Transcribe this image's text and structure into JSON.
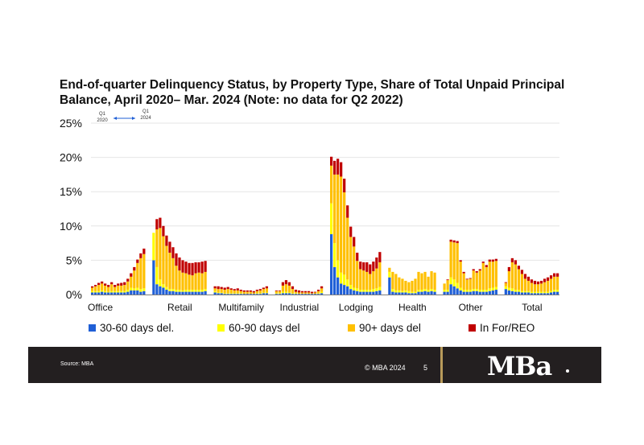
{
  "title": "End-of-quarter Delinquency Status, by Property Type, Share of Total Unpaid Principal Balance, April 2020– Mar. 2024 (Note: no data for Q2 2022)",
  "annotation": {
    "start_quarter": "Q1",
    "start_year": "2020",
    "end_quarter": "Q1",
    "end_year": "2024"
  },
  "footer": {
    "source": "Source: MBA",
    "copyright": "© MBA 2024",
    "page": "5",
    "logo": "MBa"
  },
  "colors": {
    "s30_60": "#1f5fd6",
    "s60_90": "#ffff00",
    "s90plus": "#ffc000",
    "reo": "#c00000",
    "grid": "#e6e6e6",
    "axis": "#7f7f7f"
  },
  "chart_data": {
    "type": "bar",
    "stacked": true,
    "ylim": [
      0,
      25
    ],
    "yticks": [
      "0%",
      "5%",
      "10%",
      "15%",
      "20%",
      "25%"
    ],
    "ytick_values": [
      0,
      5,
      10,
      15,
      20,
      25
    ],
    "categories": [
      "Office",
      "Retail",
      "Multifamily",
      "Industrial",
      "Lodging",
      "Health",
      "Other",
      "Total"
    ],
    "series": [
      {
        "name": "30-60 days del.",
        "key": "s30_60"
      },
      {
        "name": "60-90 days del",
        "key": "s60_90"
      },
      {
        "name": "90+ days del",
        "key": "s90plus"
      },
      {
        "name": "In For/REO",
        "key": "reo"
      }
    ],
    "groups": [
      {
        "name": "Office",
        "bars": [
          [
            0.3,
            0.2,
            0.5,
            0.2
          ],
          [
            0.3,
            0.2,
            0.7,
            0.2
          ],
          [
            0.3,
            0.2,
            0.9,
            0.3
          ],
          [
            0.4,
            0.2,
            1.0,
            0.3
          ],
          [
            0.3,
            0.2,
            0.8,
            0.3
          ],
          [
            0.3,
            0.1,
            0.7,
            0.3
          ],
          [
            0.3,
            0.2,
            1.0,
            0.3
          ],
          [
            0.3,
            0.2,
            0.6,
            0.3
          ],
          [
            0.3,
            0.2,
            0.8,
            0.3
          ],
          [
            0.3,
            0.2,
            0.8,
            0.4
          ],
          [
            0.3,
            0.2,
            0.9,
            0.4
          ],
          [
            0.4,
            0.3,
            1.2,
            0.4
          ],
          [
            0.6,
            0.4,
            1.6,
            0.5
          ],
          [
            0.6,
            0.3,
            2.6,
            0.5
          ],
          [
            0.6,
            0.4,
            3.6,
            0.5
          ],
          [
            0.4,
            0.4,
            4.5,
            0.7
          ],
          [
            0.5,
            0.4,
            5.0,
            0.8
          ]
        ]
      },
      {
        "name": "Retail",
        "bars": [
          [
            5.0,
            4.0,
            0,
            0
          ],
          [
            1.5,
            2.5,
            5.5,
            1.5
          ],
          [
            1.2,
            1.0,
            7.5,
            1.5
          ],
          [
            1.0,
            0.5,
            7.0,
            1.5
          ],
          [
            0.7,
            0.4,
            6.0,
            1.5
          ],
          [
            0.5,
            0.3,
            5.3,
            1.6
          ],
          [
            0.5,
            0.3,
            4.5,
            1.6
          ],
          [
            0.4,
            0.3,
            3.5,
            1.8
          ],
          [
            0.4,
            0.3,
            2.8,
            1.9
          ],
          [
            0.4,
            0.2,
            2.6,
            1.8
          ],
          [
            0.4,
            0.3,
            2.4,
            1.7
          ],
          [
            0.4,
            0.3,
            2.2,
            1.7
          ],
          [
            0.4,
            0.3,
            2.1,
            1.8
          ],
          [
            0.4,
            0.3,
            2.4,
            1.6
          ],
          [
            0.4,
            0.3,
            2.5,
            1.5
          ],
          [
            0.4,
            0.3,
            2.4,
            1.7
          ],
          [
            0.5,
            0.3,
            2.5,
            1.6
          ]
        ]
      },
      {
        "name": "Multifamily",
        "bars": [
          [
            0.3,
            0.2,
            0.4,
            0.3
          ],
          [
            0.2,
            0.1,
            0.5,
            0.4
          ],
          [
            0.2,
            0.1,
            0.5,
            0.3
          ],
          [
            0.1,
            0.1,
            0.5,
            0.3
          ],
          [
            0.1,
            0.1,
            0.6,
            0.3
          ],
          [
            0.1,
            0.1,
            0.5,
            0.2
          ],
          [
            0.1,
            0.1,
            0.4,
            0.2
          ],
          [
            0.1,
            0.1,
            0.4,
            0.3
          ],
          [
            0.1,
            0.1,
            0.3,
            0.2
          ],
          [
            0.1,
            0.0,
            0.3,
            0.2
          ],
          [
            0.1,
            0.0,
            0.3,
            0.2
          ],
          [
            0.1,
            0.0,
            0.3,
            0.2
          ],
          [
            0.1,
            0.0,
            0.2,
            0.2
          ],
          [
            0.1,
            0.1,
            0.3,
            0.2
          ],
          [
            0.1,
            0.1,
            0.4,
            0.2
          ],
          [
            0.2,
            0.1,
            0.5,
            0.2
          ],
          [
            0.2,
            0.1,
            0.6,
            0.3
          ]
        ]
      },
      {
        "name": "Industrial",
        "bars": [
          [
            0.1,
            0.1,
            0.3,
            0.1
          ],
          [
            0.1,
            0.1,
            0.3,
            0.1
          ],
          [
            0.2,
            0.2,
            0.9,
            0.5
          ],
          [
            0.2,
            0.2,
            1.1,
            0.6
          ],
          [
            0.2,
            0.1,
            1.0,
            0.5
          ],
          [
            0.1,
            0.1,
            0.6,
            0.4
          ],
          [
            0.1,
            0.1,
            0.2,
            0.3
          ],
          [
            0.1,
            0.0,
            0.2,
            0.3
          ],
          [
            0.1,
            0.0,
            0.2,
            0.2
          ],
          [
            0.1,
            0.0,
            0.2,
            0.2
          ],
          [
            0.1,
            0.0,
            0.2,
            0.2
          ],
          [
            0.1,
            0.0,
            0.1,
            0.2
          ],
          [
            0.1,
            0.0,
            0.2,
            0.1
          ],
          [
            0.1,
            0.1,
            0.3,
            0.2
          ],
          [
            0.2,
            0.2,
            0.5,
            0.3
          ]
        ]
      },
      {
        "name": "Lodging",
        "bars": [
          [
            8.8,
            4.5,
            5.5,
            1.3
          ],
          [
            4.0,
            3.5,
            10.0,
            2.0
          ],
          [
            2.5,
            2.5,
            12.5,
            2.3
          ],
          [
            1.6,
            1.6,
            14.0,
            2.1
          ],
          [
            1.4,
            1.5,
            12.0,
            2.0
          ],
          [
            1.2,
            1.0,
            9.0,
            1.8
          ],
          [
            0.8,
            0.6,
            7.0,
            1.5
          ],
          [
            0.6,
            0.4,
            6.0,
            1.4
          ],
          [
            0.5,
            0.4,
            4.0,
            1.2
          ],
          [
            0.4,
            0.3,
            3.0,
            1.1
          ],
          [
            0.4,
            0.3,
            2.8,
            1.2
          ],
          [
            0.4,
            0.3,
            2.6,
            1.4
          ],
          [
            0.4,
            0.3,
            2.3,
            1.4
          ],
          [
            0.4,
            0.4,
            2.6,
            1.4
          ],
          [
            0.5,
            0.4,
            2.9,
            1.6
          ],
          [
            0.6,
            0.5,
            3.6,
            1.5
          ]
        ]
      },
      {
        "name": "Health",
        "bars": [
          [
            2.5,
            0.8,
            0.6,
            0
          ],
          [
            0.4,
            0.4,
            2.5,
            0
          ],
          [
            0.3,
            0.3,
            2.4,
            0
          ],
          [
            0.3,
            0.3,
            1.9,
            0
          ],
          [
            0.3,
            0.2,
            1.8,
            0
          ],
          [
            0.3,
            0.3,
            1.4,
            0
          ],
          [
            0.2,
            0.3,
            1.3,
            0
          ],
          [
            0.2,
            0.2,
            1.6,
            0
          ],
          [
            0.2,
            0.2,
            1.9,
            0
          ],
          [
            0.4,
            0.3,
            2.6,
            0
          ],
          [
            0.4,
            0.3,
            2.4,
            0
          ],
          [
            0.5,
            0.3,
            2.5,
            0
          ],
          [
            0.4,
            0.3,
            1.9,
            0
          ],
          [
            0.5,
            0.3,
            2.6,
            0
          ],
          [
            0.4,
            0.3,
            2.5,
            0
          ]
        ]
      },
      {
        "name": "Other",
        "bars": [
          [
            0.4,
            0.3,
            0.9,
            0
          ],
          [
            0.4,
            0.3,
            1.4,
            0.1
          ],
          [
            1.5,
            1.0,
            5.2,
            0.3
          ],
          [
            1.2,
            1.0,
            5.4,
            0.3
          ],
          [
            0.9,
            0.8,
            5.8,
            0.3
          ],
          [
            0.6,
            0.4,
            3.8,
            0.2
          ],
          [
            0.4,
            0.3,
            2.4,
            0.2
          ],
          [
            0.4,
            0.3,
            1.5,
            0.1
          ],
          [
            0.4,
            0.3,
            1.6,
            0.1
          ],
          [
            0.5,
            0.3,
            2.7,
            0.2
          ],
          [
            0.5,
            0.3,
            2.4,
            0.2
          ],
          [
            0.4,
            0.3,
            2.8,
            0.2
          ],
          [
            0.4,
            0.3,
            3.9,
            0.2
          ],
          [
            0.4,
            0.3,
            3.3,
            0.3
          ],
          [
            0.5,
            0.4,
            3.9,
            0.3
          ],
          [
            0.6,
            0.4,
            3.8,
            0.3
          ],
          [
            0.7,
            0.4,
            3.8,
            0.3
          ]
        ]
      },
      {
        "name": "Total",
        "bars": [
          [
            0.8,
            0.4,
            0.5,
            0.1
          ],
          [
            0.6,
            0.4,
            2.4,
            0.6
          ],
          [
            0.5,
            0.4,
            3.8,
            0.6
          ],
          [
            0.4,
            0.3,
            3.7,
            0.6
          ],
          [
            0.4,
            0.3,
            3.0,
            0.5
          ],
          [
            0.3,
            0.2,
            2.5,
            0.6
          ],
          [
            0.3,
            0.2,
            1.8,
            0.7
          ],
          [
            0.3,
            0.2,
            1.5,
            0.6
          ],
          [
            0.2,
            0.2,
            1.3,
            0.5
          ],
          [
            0.2,
            0.2,
            1.1,
            0.5
          ],
          [
            0.2,
            0.2,
            1.1,
            0.4
          ],
          [
            0.2,
            0.2,
            1.2,
            0.4
          ],
          [
            0.2,
            0.2,
            1.4,
            0.5
          ],
          [
            0.2,
            0.2,
            1.6,
            0.5
          ],
          [
            0.3,
            0.2,
            1.8,
            0.5
          ],
          [
            0.4,
            0.3,
            1.9,
            0.5
          ],
          [
            0.4,
            0.3,
            1.9,
            0.5
          ]
        ]
      }
    ]
  }
}
